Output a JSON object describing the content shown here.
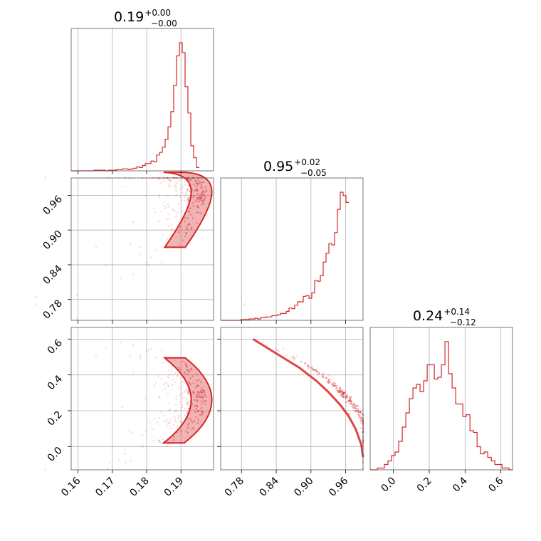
{
  "chart_data": {
    "type": "corner",
    "color": "#d62728",
    "grid": true,
    "parameters": [
      {
        "median": "0.19",
        "plus": "+0.00",
        "minus": "−0.00",
        "range": [
          0.158,
          0.1995
        ]
      },
      {
        "median": "0.95",
        "plus": "+0.02",
        "minus": "−0.05",
        "range": [
          0.744,
          0.99
        ]
      },
      {
        "median": "0.24",
        "plus": "+0.14",
        "minus": "−0.12",
        "range": [
          -0.13,
          0.665
        ]
      }
    ],
    "ticks": {
      "p0": [
        "0.16",
        "0.17",
        "0.18",
        "0.19"
      ],
      "p1": [
        "0.78",
        "0.84",
        "0.90",
        "0.96"
      ],
      "p2": [
        "0.0",
        "0.2",
        "0.4",
        "0.6"
      ]
    },
    "hist_p0": {
      "bin_start": 0.158,
      "bin_width": 0.00083,
      "counts": [
        0,
        0,
        0,
        0,
        0,
        0,
        0,
        0,
        1,
        1,
        1,
        1,
        0,
        1,
        1,
        1,
        2,
        2,
        3,
        3,
        2,
        3,
        4,
        6,
        5,
        8,
        11,
        11,
        15,
        14,
        24,
        28,
        36,
        48,
        67,
        90,
        130,
        175,
        195,
        180,
        128,
        88,
        38,
        20,
        5
      ]
    },
    "hist_p1": {
      "bin_start": 0.744,
      "bin_width": 0.00492,
      "counts": [
        0,
        0,
        0,
        0,
        0,
        0,
        0,
        1,
        1,
        1,
        2,
        2,
        3,
        2,
        4,
        4,
        5,
        5,
        7,
        7,
        8,
        10,
        10,
        13,
        18,
        17,
        22,
        27,
        27,
        35,
        36,
        32,
        40,
        58,
        57,
        65,
        85,
        98,
        112,
        110,
        128,
        162,
        187,
        182,
        172
      ]
    },
    "hist_p2": {
      "bin_start": -0.13,
      "bin_width": 0.0199,
      "counts": [
        0,
        0,
        1,
        1,
        3,
        5,
        8,
        10,
        16,
        24,
        32,
        40,
        46,
        48,
        44,
        50,
        59,
        59,
        51,
        52,
        59,
        72,
        54,
        46,
        37,
        37,
        30,
        31,
        22,
        21,
        13,
        9,
        10,
        7,
        5,
        3,
        3,
        1,
        1,
        0
      ]
    },
    "ref_pairs": {
      "p1_p2": {
        "x": [
          0.8,
          0.84,
          0.88,
          0.91,
          0.93,
          0.95,
          0.965,
          0.977,
          0.987,
          0.99
        ],
        "y": [
          0.6,
          0.52,
          0.44,
          0.365,
          0.305,
          0.235,
          0.17,
          0.1,
          0.01,
          -0.06
        ]
      }
    }
  }
}
